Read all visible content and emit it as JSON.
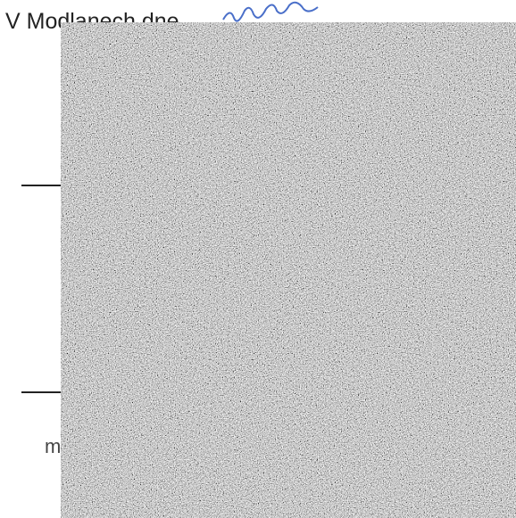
{
  "document": {
    "place_date_label": "V Modlanech dne",
    "fragment": "m"
  }
}
